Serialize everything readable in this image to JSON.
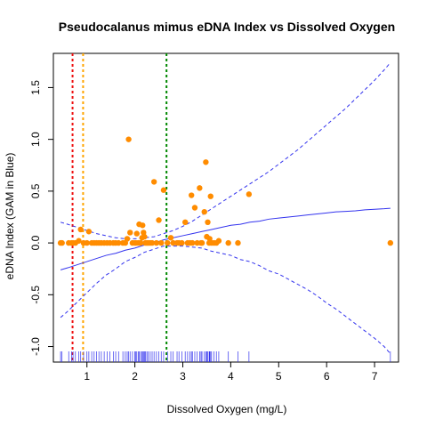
{
  "chart_data": {
    "type": "scatter",
    "title": "Pseudocalanus mimus eDNA Index vs Dissolved Oxygen",
    "xlabel": "Dissolved Oxygen (mg/L)",
    "ylabel": "eDNA Index (GAM in Blue)",
    "xlim": [
      0.3,
      7.5
    ],
    "ylim": [
      -1.15,
      1.83
    ],
    "x_ticks": [
      1,
      2,
      3,
      4,
      5,
      6,
      7
    ],
    "x_tick_labels": [
      "1",
      "2",
      "3",
      "4",
      "5",
      "6",
      "7"
    ],
    "y_ticks": [
      -1.0,
      -0.5,
      0.0,
      0.5,
      1.0,
      1.5
    ],
    "y_tick_labels": [
      "-1.0",
      "-0.5",
      "0.0",
      "0.5",
      "1.0",
      "1.5"
    ],
    "grid": false,
    "legend": null,
    "colors": {
      "points": "#FF8C00",
      "gam_line": "#3333EE",
      "rug": "#3333EE",
      "vline_red": "#EE1111",
      "vline_orange": "#FFA500",
      "vline_green": "#008800"
    },
    "vlines": [
      {
        "x": 0.7,
        "color_key": "vline_red"
      },
      {
        "x": 0.92,
        "color_key": "vline_orange"
      },
      {
        "x": 2.66,
        "color_key": "vline_green"
      }
    ],
    "points": [
      [
        0.45,
        0.0
      ],
      [
        0.48,
        0.0
      ],
      [
        0.62,
        0.0
      ],
      [
        0.68,
        0.0
      ],
      [
        0.71,
        0.0
      ],
      [
        0.76,
        0.0
      ],
      [
        0.83,
        0.02
      ],
      [
        0.87,
        0.13
      ],
      [
        0.93,
        0.0
      ],
      [
        1.0,
        0.0
      ],
      [
        1.04,
        0.11
      ],
      [
        1.1,
        0.0
      ],
      [
        1.15,
        0.0
      ],
      [
        1.2,
        0.0
      ],
      [
        1.25,
        0.0
      ],
      [
        1.3,
        0.0
      ],
      [
        1.36,
        0.0
      ],
      [
        1.42,
        0.0
      ],
      [
        1.48,
        0.0
      ],
      [
        1.55,
        0.0
      ],
      [
        1.6,
        0.0
      ],
      [
        1.66,
        0.0
      ],
      [
        1.75,
        0.0
      ],
      [
        1.8,
        0.0
      ],
      [
        1.84,
        0.04
      ],
      [
        1.87,
        1.0
      ],
      [
        1.9,
        0.1
      ],
      [
        1.95,
        0.0
      ],
      [
        2.0,
        0.0
      ],
      [
        2.04,
        0.09
      ],
      [
        2.07,
        0.0
      ],
      [
        2.09,
        0.18
      ],
      [
        2.12,
        0.0
      ],
      [
        2.15,
        0.05
      ],
      [
        2.16,
        0.17
      ],
      [
        2.18,
        0.1
      ],
      [
        2.2,
        0.06
      ],
      [
        2.22,
        0.0
      ],
      [
        2.25,
        0.0
      ],
      [
        2.28,
        0.0
      ],
      [
        2.32,
        0.0
      ],
      [
        2.36,
        0.0
      ],
      [
        2.4,
        0.59
      ],
      [
        2.45,
        0.0
      ],
      [
        2.5,
        0.22
      ],
      [
        2.55,
        0.0
      ],
      [
        2.6,
        0.51
      ],
      [
        2.68,
        0.0
      ],
      [
        2.75,
        0.05
      ],
      [
        2.8,
        0.0
      ],
      [
        2.88,
        0.0
      ],
      [
        2.92,
        0.0
      ],
      [
        2.98,
        0.0
      ],
      [
        3.05,
        0.2
      ],
      [
        3.1,
        0.0
      ],
      [
        3.15,
        0.0
      ],
      [
        3.18,
        0.46
      ],
      [
        3.25,
        0.34
      ],
      [
        3.3,
        0.0
      ],
      [
        3.35,
        0.53
      ],
      [
        3.4,
        0.0
      ],
      [
        3.45,
        0.3
      ],
      [
        3.48,
        0.78
      ],
      [
        3.5,
        0.06
      ],
      [
        3.55,
        0.0
      ],
      [
        3.58,
        0.45
      ],
      [
        3.6,
        0.0
      ],
      [
        3.65,
        0.0
      ],
      [
        3.7,
        0.0
      ],
      [
        3.75,
        0.02
      ],
      [
        3.95,
        0.0
      ],
      [
        4.15,
        0.0
      ],
      [
        4.38,
        0.47
      ],
      [
        7.33,
        0.0
      ],
      [
        3.52,
        0.2
      ],
      [
        3.56,
        0.04
      ],
      [
        3.38,
        0.0
      ],
      [
        3.2,
        0.0
      ],
      [
        2.02,
        0.0
      ]
    ],
    "gam_fit": {
      "x": [
        0.45,
        0.6,
        0.8,
        1.0,
        1.2,
        1.4,
        1.6,
        1.8,
        2.0,
        2.2,
        2.4,
        2.6,
        2.8,
        3.0,
        3.2,
        3.4,
        3.6,
        3.8,
        4.0,
        4.2,
        4.4,
        4.6,
        4.8,
        5.0,
        5.2,
        5.4,
        5.6,
        5.8,
        6.0,
        6.2,
        6.4,
        6.6,
        6.8,
        7.0,
        7.2,
        7.33
      ],
      "fit": [
        -0.26,
        -0.24,
        -0.21,
        -0.18,
        -0.15,
        -0.12,
        -0.1,
        -0.07,
        -0.05,
        -0.02,
        0.0,
        0.03,
        0.05,
        0.07,
        0.09,
        0.11,
        0.13,
        0.15,
        0.17,
        0.18,
        0.2,
        0.21,
        0.23,
        0.24,
        0.25,
        0.26,
        0.27,
        0.28,
        0.29,
        0.3,
        0.305,
        0.31,
        0.32,
        0.325,
        0.33,
        0.335
      ],
      "upper": [
        0.2,
        0.18,
        0.15,
        0.12,
        0.09,
        0.07,
        0.05,
        0.04,
        0.04,
        0.05,
        0.06,
        0.09,
        0.12,
        0.16,
        0.21,
        0.27,
        0.33,
        0.39,
        0.45,
        0.51,
        0.57,
        0.63,
        0.69,
        0.76,
        0.83,
        0.9,
        0.98,
        1.06,
        1.14,
        1.22,
        1.3,
        1.39,
        1.48,
        1.57,
        1.67,
        1.74
      ],
      "lower": [
        -0.72,
        -0.66,
        -0.57,
        -0.48,
        -0.39,
        -0.31,
        -0.25,
        -0.18,
        -0.14,
        -0.09,
        -0.06,
        -0.03,
        -0.03,
        -0.03,
        -0.04,
        -0.05,
        -0.08,
        -0.1,
        -0.12,
        -0.16,
        -0.18,
        -0.22,
        -0.27,
        -0.3,
        -0.35,
        -0.4,
        -0.45,
        -0.51,
        -0.58,
        -0.64,
        -0.71,
        -0.78,
        -0.85,
        -0.92,
        -1.0,
        -1.07
      ]
    },
    "rug_x": [
      0.45,
      0.48,
      0.62,
      0.68,
      0.71,
      0.76,
      0.83,
      0.87,
      0.93,
      1.0,
      1.04,
      1.1,
      1.15,
      1.2,
      1.25,
      1.3,
      1.36,
      1.42,
      1.48,
      1.55,
      1.6,
      1.66,
      1.75,
      1.8,
      1.84,
      1.87,
      1.9,
      1.95,
      2.0,
      2.02,
      2.04,
      2.07,
      2.09,
      2.12,
      2.15,
      2.16,
      2.18,
      2.2,
      2.22,
      2.25,
      2.28,
      2.32,
      2.36,
      2.4,
      2.45,
      2.5,
      2.55,
      2.6,
      2.68,
      2.75,
      2.8,
      2.88,
      2.92,
      2.98,
      3.05,
      3.1,
      3.15,
      3.18,
      3.2,
      3.25,
      3.3,
      3.35,
      3.38,
      3.4,
      3.45,
      3.48,
      3.5,
      3.52,
      3.55,
      3.56,
      3.58,
      3.6,
      3.65,
      3.7,
      3.75,
      3.95,
      4.15,
      4.38,
      7.33
    ]
  }
}
